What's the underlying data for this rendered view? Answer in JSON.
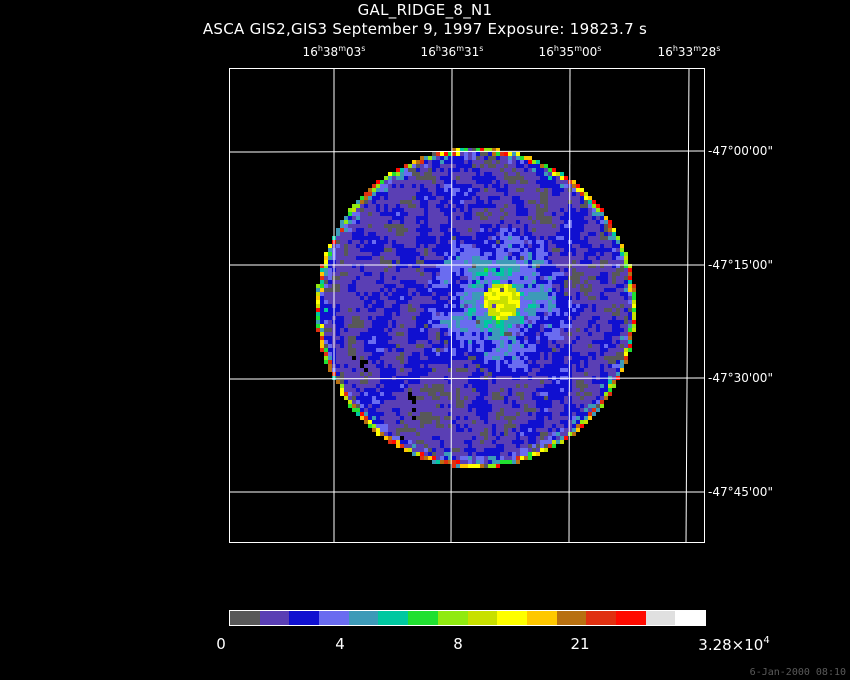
{
  "title": "GAL_RIDGE_8_N1",
  "subtitle": "ASCA GIS2,GIS3 September 9, 1997 Exposure: 19823.7 s",
  "ra_axis": [
    {
      "h": "16",
      "m": "38",
      "s": "03"
    },
    {
      "h": "16",
      "m": "36",
      "s": "31"
    },
    {
      "h": "16",
      "m": "35",
      "s": "00"
    },
    {
      "h": "16",
      "m": "33",
      "s": "28"
    }
  ],
  "dec_axis": [
    "-47°00'00\"",
    "-47°15'00\"",
    "-47°30'00\"",
    "-47°45'00\""
  ],
  "colorbar": {
    "colors": [
      "#585858",
      "#5a3fb4",
      "#1010d0",
      "#6a6cf0",
      "#3d9ab8",
      "#00c8a0",
      "#20e030",
      "#90ea10",
      "#c8e000",
      "#ffff00",
      "#ffc800",
      "#b87010",
      "#e03010",
      "#ff0a00",
      "#e0e0e0",
      "#ffffff"
    ],
    "ticks": {
      "t0": "0",
      "t1": "4",
      "t2": "8",
      "t3": "21",
      "t4_mantissa": "3.28×10",
      "t4_exp": "4"
    }
  },
  "footer_stamp": "6-Jan-2000 08:10"
}
